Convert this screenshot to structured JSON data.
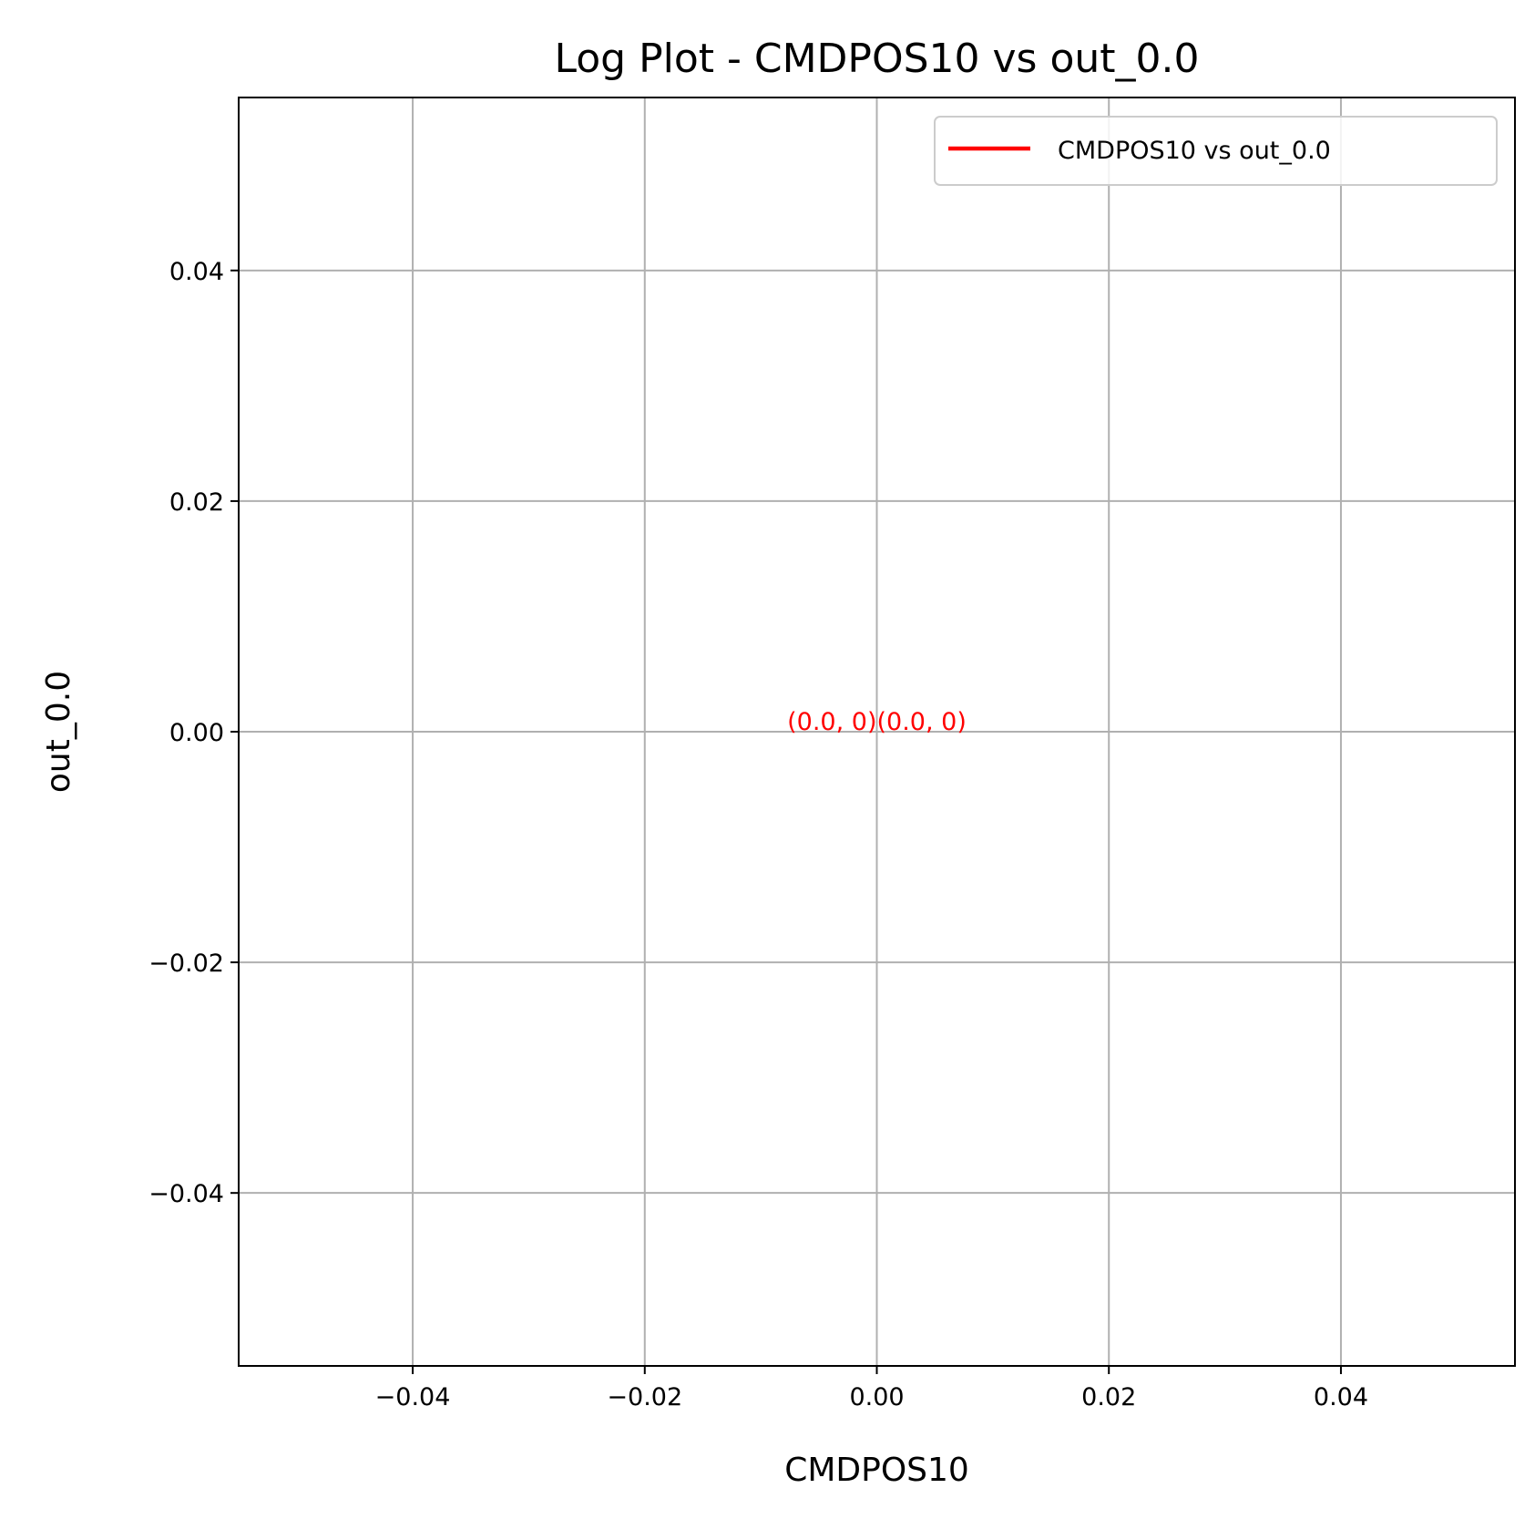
{
  "chart_data": {
    "type": "line",
    "title": "Log Plot - CMDPOS10 vs out_0.0",
    "xlabel": "CMDPOS10",
    "ylabel": "out_0.0",
    "xlim": [
      -0.055,
      0.055
    ],
    "ylim": [
      -0.055,
      0.055
    ],
    "xticks": [
      -0.04,
      -0.02,
      0.0,
      0.02,
      0.04
    ],
    "xtick_labels": [
      "−0.04",
      "−0.02",
      "0.00",
      "0.02",
      "0.04"
    ],
    "yticks": [
      -0.04,
      -0.02,
      0.0,
      0.02,
      0.04
    ],
    "ytick_labels": [
      "−0.04",
      "−0.02",
      "0.00",
      "0.02",
      "0.04"
    ],
    "grid": true,
    "legend_position": "top-right",
    "series": [
      {
        "name": "CMDPOS10 vs out_0.0",
        "color": "#ff0000",
        "x": [
          0.0,
          0.0
        ],
        "y": [
          0.0,
          0.0
        ]
      }
    ],
    "annotations": [
      {
        "text": "(0.0, 0)",
        "x": 0.0,
        "y": 0.0,
        "color": "#ff0000",
        "ha": "right"
      },
      {
        "text": "(0.0, 0)",
        "x": 0.0,
        "y": 0.0,
        "color": "#ff0000",
        "ha": "left"
      }
    ]
  }
}
